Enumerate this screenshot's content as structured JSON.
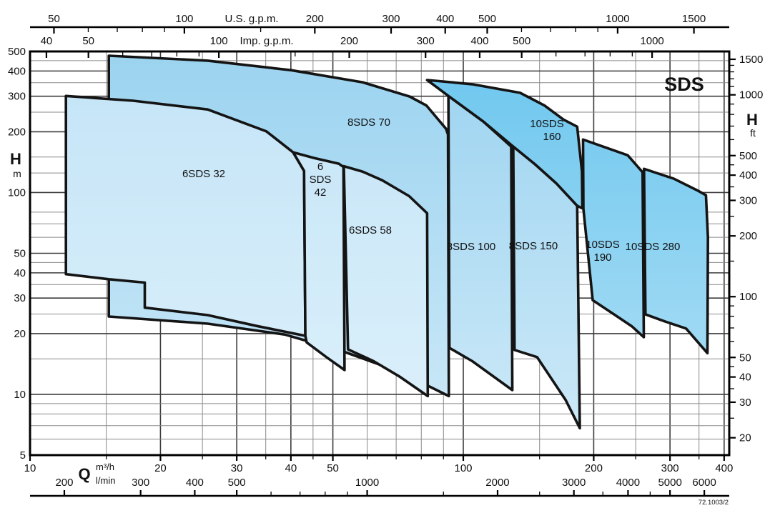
{
  "page": {
    "code_ref": "72.1003/2"
  },
  "chart_data": {
    "type": "area",
    "title": "SDS",
    "scales": {
      "x": "log",
      "y": "log",
      "x_range_m3h": [
        10,
        410
      ],
      "y_range_m": [
        5,
        500
      ]
    },
    "axes": {
      "top_us_gpm": {
        "title": "U.S. g.p.m.",
        "major": [
          50,
          100,
          200,
          300,
          400,
          500,
          1000,
          1500
        ],
        "minor": [
          60,
          70,
          80,
          90,
          150,
          600,
          700,
          800,
          900
        ]
      },
      "top_imp_gpm": {
        "title": "Imp. g.p.m.",
        "major": [
          40,
          50,
          100,
          200,
          300,
          400,
          500,
          1000
        ],
        "minor": [
          60,
          70,
          80,
          90,
          150,
          600,
          700,
          800,
          900
        ]
      },
      "left_m": {
        "title": "H",
        "unit": "m",
        "major": [
          500,
          400,
          300,
          200,
          100,
          50,
          40,
          30,
          20,
          10,
          5
        ]
      },
      "right_ft": {
        "title": "H",
        "unit": "ft",
        "major": [
          1500,
          1000,
          500,
          400,
          300,
          200,
          100,
          50,
          40,
          30,
          20
        ],
        "minor": [
          1400,
          1300,
          1200,
          1100,
          900,
          800,
          700,
          600,
          450,
          350,
          250,
          150,
          90,
          80,
          70,
          60,
          45,
          35,
          25
        ]
      },
      "bottom_m3h": {
        "title": "Q",
        "unit": "m³/h",
        "major": [
          10,
          20,
          30,
          40,
          50,
          100,
          200,
          300,
          400
        ]
      },
      "bottom_lmin": {
        "unit": "l/min",
        "major": [
          200,
          300,
          400,
          500,
          1000,
          2000,
          3000,
          4000,
          5000,
          6000
        ],
        "minor": [
          600,
          700,
          800,
          900,
          1500,
          2500,
          3500,
          4500
        ]
      }
    },
    "grid": {
      "x_lines": [
        15,
        20,
        25,
        30,
        35,
        40,
        45,
        50,
        60,
        70,
        80,
        90,
        100,
        150,
        200,
        250,
        300,
        350,
        400
      ],
      "x_major": [
        20,
        30,
        40,
        50,
        100,
        200,
        300,
        400
      ],
      "y_lines": [
        450,
        400,
        350,
        300,
        250,
        200,
        150,
        125,
        100,
        80,
        70,
        60,
        50,
        45,
        40,
        35,
        30,
        25,
        20,
        15,
        10,
        9,
        8,
        7,
        6
      ],
      "y_major": [
        400,
        300,
        200,
        100,
        50,
        40,
        30,
        20,
        10
      ]
    },
    "series": [
      {
        "id": "8sds70",
        "tier": "medium",
        "lines": [
          "8SDS 70"
        ],
        "points": [
          [
            15.2,
            476
          ],
          [
            25.7,
            450
          ],
          [
            40,
            404
          ],
          [
            58.5,
            352
          ],
          [
            75.2,
            299
          ],
          [
            82.2,
            270
          ],
          [
            91.2,
            207
          ],
          [
            92.2,
            194
          ],
          [
            92.6,
            9.8
          ],
          [
            71.5,
            12.9
          ],
          [
            52.9,
            16.3
          ],
          [
            38.7,
            19.8
          ],
          [
            25.7,
            22.4
          ],
          [
            15.2,
            24.3
          ]
        ]
      },
      {
        "id": "8sds100",
        "tier": "medium",
        "lines": [
          "8SDS 100"
        ],
        "points": [
          [
            92.4,
            301
          ],
          [
            111.2,
            225
          ],
          [
            129,
            169
          ],
          [
            129.8,
            10.5
          ],
          [
            104.9,
            14.6
          ],
          [
            92.9,
            17
          ]
        ]
      },
      {
        "id": "8sds150",
        "tier": "medium",
        "lines": [
          "8SDS 150"
        ],
        "points": [
          [
            130.4,
            169
          ],
          [
            146.4,
            138
          ],
          [
            164,
            111
          ],
          [
            183.2,
            86
          ],
          [
            185.8,
            6.8
          ],
          [
            172.2,
            9.4
          ],
          [
            148,
            15.3
          ],
          [
            131.3,
            16.6
          ]
        ]
      },
      {
        "id": "10sds160",
        "tier": "dark",
        "lines": [
          "10SDS",
          "160"
        ],
        "points": [
          [
            82.5,
            361
          ],
          [
            104.9,
            344
          ],
          [
            135.2,
            312
          ],
          [
            153.9,
            270
          ],
          [
            170.3,
            230
          ],
          [
            183.2,
            212
          ],
          [
            187.9,
            127
          ],
          [
            188.3,
            83.4
          ],
          [
            183.2,
            86
          ],
          [
            164,
            111
          ],
          [
            146.4,
            138
          ],
          [
            130.4,
            169
          ],
          [
            111.2,
            225
          ],
          [
            92.4,
            301
          ]
        ]
      },
      {
        "id": "10sds190",
        "tier": "dark",
        "lines": [
          "10SDS",
          "190"
        ],
        "points": [
          [
            189,
            183
          ],
          [
            239.6,
            153
          ],
          [
            259.3,
            126
          ],
          [
            261,
            19.2
          ],
          [
            245.2,
            21.7
          ],
          [
            222.2,
            25
          ],
          [
            198.9,
            29.3
          ],
          [
            189.3,
            83
          ]
        ]
      },
      {
        "id": "10sds280",
        "tier": "dark",
        "lines": [
          "10SDS 280"
        ],
        "points": [
          [
            261.3,
            131
          ],
          [
            306.4,
            117
          ],
          [
            348.3,
            102
          ],
          [
            363.2,
            97
          ],
          [
            367,
            60
          ],
          [
            366,
            16
          ],
          [
            326.7,
            21.2
          ],
          [
            291.8,
            23
          ],
          [
            263.3,
            24.9
          ]
        ]
      },
      {
        "id": "6sds32",
        "tier": "light",
        "lines": [
          "6SDS 32"
        ],
        "points": [
          [
            12.1,
            301
          ],
          [
            17.3,
            285
          ],
          [
            25.7,
            258
          ],
          [
            35.1,
            201
          ],
          [
            40.5,
            158
          ],
          [
            42.9,
            128
          ],
          [
            43.2,
            19.5
          ],
          [
            33.4,
            21.8
          ],
          [
            25.7,
            24.7
          ],
          [
            18.4,
            26.9
          ],
          [
            18.4,
            35.8
          ],
          [
            15.2,
            37.2
          ],
          [
            12.1,
            39.4
          ]
        ]
      },
      {
        "id": "6sds42",
        "tier": "light",
        "lines": [
          "6",
          "SDS",
          "42"
        ],
        "points": [
          [
            40.5,
            158
          ],
          [
            45.4,
            148
          ],
          [
            51.6,
            139
          ],
          [
            52.9,
            134
          ],
          [
            53.2,
            13.2
          ],
          [
            48.3,
            15.3
          ],
          [
            43.5,
            18.1
          ],
          [
            43.2,
            19.5
          ],
          [
            42.9,
            128
          ]
        ]
      },
      {
        "id": "6sds58",
        "tier": "light",
        "lines": [
          "6SDS 58"
        ],
        "points": [
          [
            53,
            135
          ],
          [
            58.5,
            127
          ],
          [
            65,
            115
          ],
          [
            75,
            96
          ],
          [
            82.5,
            79
          ],
          [
            82.8,
            9.8
          ],
          [
            71.5,
            12.2
          ],
          [
            62.1,
            14.6
          ],
          [
            54.2,
            16.7
          ]
        ]
      }
    ]
  },
  "colors": {
    "light_top": "#c3e4f7",
    "light_bottom": "#def1fb",
    "medium_top": "#9bd3f0",
    "medium_bottom": "#cfeaf8",
    "dark_top": "#6cc6ee",
    "dark_bottom": "#b2e1f6",
    "outline": "#141414",
    "grid_minor": "#8a8a8a",
    "grid_major": "#3c3c3c"
  }
}
